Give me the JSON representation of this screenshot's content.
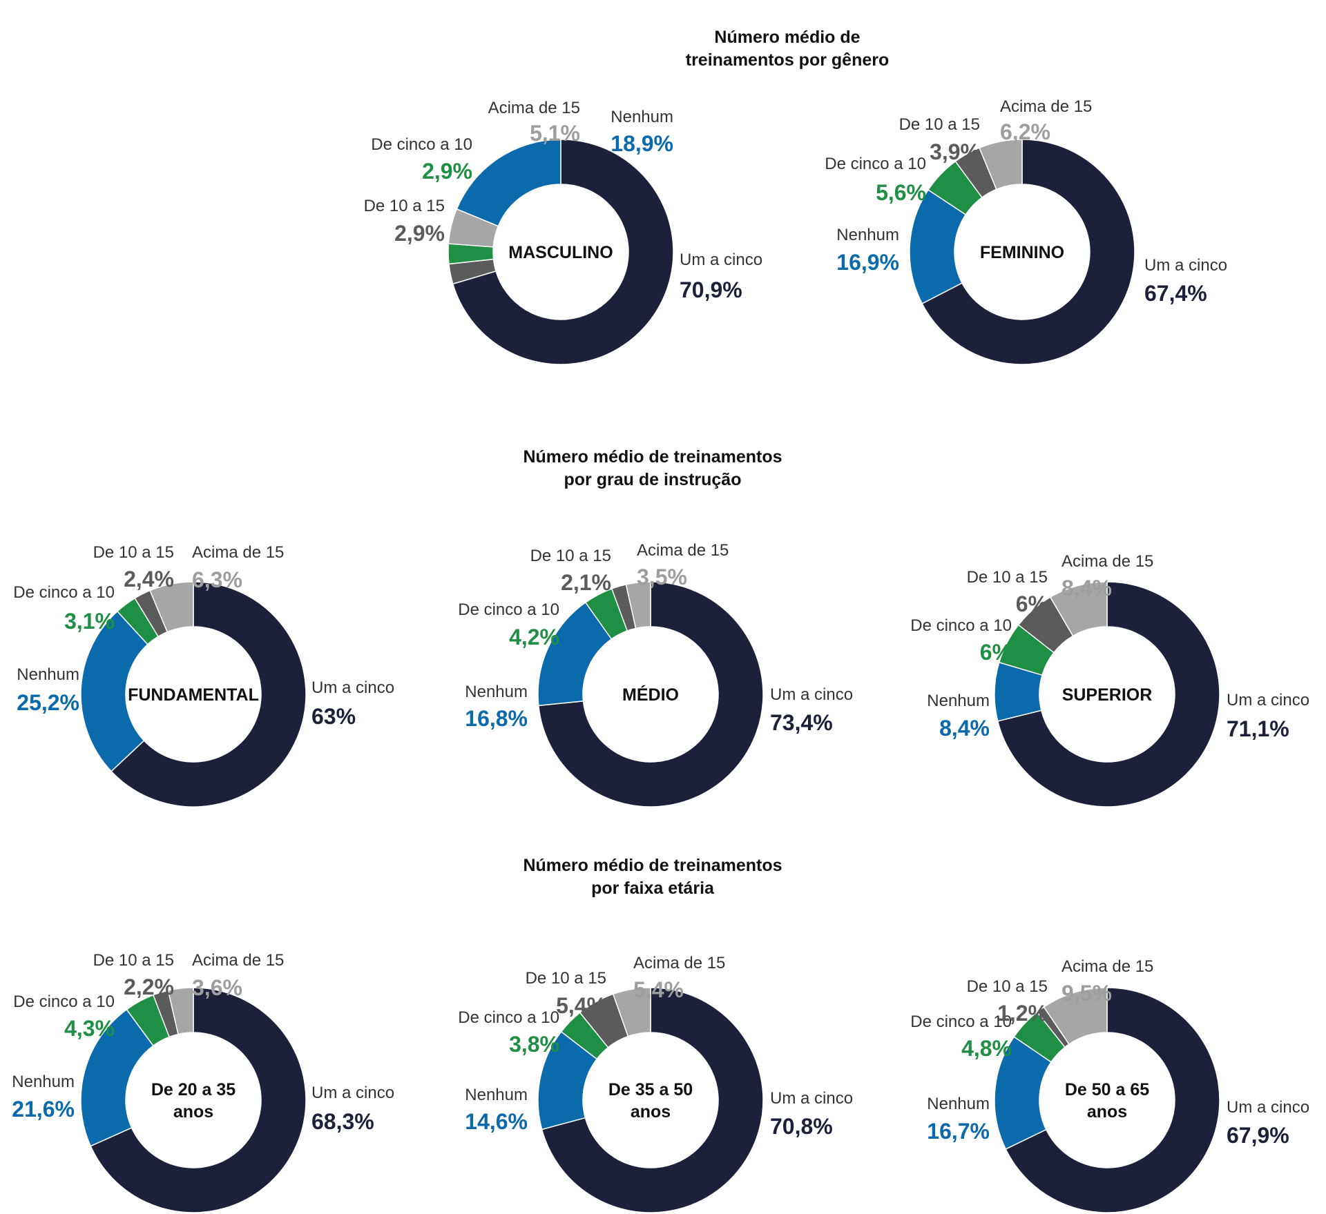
{
  "colors": {
    "um_a_cinco": "#1c2039",
    "nenhum": "#0a6aab",
    "de_cinco_a_10": "#1f8f45",
    "de_10_a_15": "#5b5b5b",
    "acima_de_15": "#a6a6a6",
    "pct_acima_de_15": "#9e9e9e",
    "title": "#111111"
  },
  "sections": [
    {
      "title_line1": "Número médio de",
      "title_line2": "treinamentos por gênero"
    },
    {
      "title_line1": "Número médio de treinamentos",
      "title_line2": "por grau de instrução"
    },
    {
      "title_line1": "Número médio de treinamentos",
      "title_line2": "por faixa etária"
    }
  ],
  "chart_data": [
    {
      "type": "pie",
      "section": "Número médio de treinamentos por gênero",
      "center_label": [
        "MASCULINO"
      ],
      "slices": [
        {
          "key": "um_a_cinco",
          "label": "Um a cinco",
          "value": 70.9,
          "pct_text": "70,9%"
        },
        {
          "key": "de_10_a_15",
          "label": "De 10 a 15",
          "value": 2.9,
          "pct_text": "2,9%"
        },
        {
          "key": "de_cinco_a_10",
          "label": "De cinco a 10",
          "value": 2.9,
          "pct_text": "2,9%"
        },
        {
          "key": "acima_de_15",
          "label": "Acima de 15",
          "value": 5.1,
          "pct_text": "5,1%"
        },
        {
          "key": "nenhum",
          "label": "Nenhum",
          "value": 18.9,
          "pct_text": "18,9%"
        }
      ]
    },
    {
      "type": "pie",
      "section": "Número médio de treinamentos por gênero",
      "center_label": [
        "FEMININO"
      ],
      "slices": [
        {
          "key": "um_a_cinco",
          "label": "Um a cinco",
          "value": 67.4,
          "pct_text": "67,4%"
        },
        {
          "key": "nenhum",
          "label": "Nenhum",
          "value": 16.9,
          "pct_text": "16,9%"
        },
        {
          "key": "de_cinco_a_10",
          "label": "De cinco a 10",
          "value": 5.6,
          "pct_text": "5,6%"
        },
        {
          "key": "de_10_a_15",
          "label": "De 10 a 15",
          "value": 3.9,
          "pct_text": "3,9%"
        },
        {
          "key": "acima_de_15",
          "label": "Acima de 15",
          "value": 6.2,
          "pct_text": "6,2%"
        }
      ]
    },
    {
      "type": "pie",
      "section": "Número médio de treinamentos por grau de instrução",
      "center_label": [
        "FUNDAMENTAL"
      ],
      "slices": [
        {
          "key": "um_a_cinco",
          "label": "Um a cinco",
          "value": 63,
          "pct_text": "63%"
        },
        {
          "key": "nenhum",
          "label": "Nenhum",
          "value": 25.2,
          "pct_text": "25,2%"
        },
        {
          "key": "de_cinco_a_10",
          "label": "De cinco a 10",
          "value": 3.1,
          "pct_text": "3,1%"
        },
        {
          "key": "de_10_a_15",
          "label": "De 10 a 15",
          "value": 2.4,
          "pct_text": "2,4%"
        },
        {
          "key": "acima_de_15",
          "label": "Acima de 15",
          "value": 6.3,
          "pct_text": "6,3%"
        }
      ]
    },
    {
      "type": "pie",
      "section": "Número médio de treinamentos por grau de instrução",
      "center_label": [
        "MÉDIO"
      ],
      "slices": [
        {
          "key": "um_a_cinco",
          "label": "Um a cinco",
          "value": 73.4,
          "pct_text": "73,4%"
        },
        {
          "key": "nenhum",
          "label": "Nenhum",
          "value": 16.8,
          "pct_text": "16,8%"
        },
        {
          "key": "de_cinco_a_10",
          "label": "De cinco a 10",
          "value": 4.2,
          "pct_text": "4,2%"
        },
        {
          "key": "de_10_a_15",
          "label": "De 10 a 15",
          "value": 2.1,
          "pct_text": "2,1%"
        },
        {
          "key": "acima_de_15",
          "label": "Acima de 15",
          "value": 3.5,
          "pct_text": "3,5%"
        }
      ]
    },
    {
      "type": "pie",
      "section": "Número médio de treinamentos por grau de instrução",
      "center_label": [
        "SUPERIOR"
      ],
      "slices": [
        {
          "key": "um_a_cinco",
          "label": "Um a cinco",
          "value": 71.1,
          "pct_text": "71,1%"
        },
        {
          "key": "nenhum",
          "label": "Nenhum",
          "value": 8.4,
          "pct_text": "8,4%"
        },
        {
          "key": "de_cinco_a_10",
          "label": "De cinco a 10",
          "value": 6,
          "pct_text": "6%"
        },
        {
          "key": "de_10_a_15",
          "label": "De 10 a 15",
          "value": 6,
          "pct_text": "6%"
        },
        {
          "key": "acima_de_15",
          "label": "Acima de 15",
          "value": 8.4,
          "pct_text": "8,4%"
        }
      ]
    },
    {
      "type": "pie",
      "section": "Número médio de treinamentos por faixa etária",
      "center_label": [
        "De 20 a 35",
        "anos"
      ],
      "slices": [
        {
          "key": "um_a_cinco",
          "label": "Um a cinco",
          "value": 68.3,
          "pct_text": "68,3%"
        },
        {
          "key": "nenhum",
          "label": "Nenhum",
          "value": 21.6,
          "pct_text": "21,6%"
        },
        {
          "key": "de_cinco_a_10",
          "label": "De cinco a 10",
          "value": 4.3,
          "pct_text": "4,3%"
        },
        {
          "key": "de_10_a_15",
          "label": "De 10 a 15",
          "value": 2.2,
          "pct_text": "2,2%"
        },
        {
          "key": "acima_de_15",
          "label": "Acima de 15",
          "value": 3.6,
          "pct_text": "3,6%"
        }
      ]
    },
    {
      "type": "pie",
      "section": "Número médio de treinamentos por faixa etária",
      "center_label": [
        "De 35 a 50",
        "anos"
      ],
      "slices": [
        {
          "key": "um_a_cinco",
          "label": "Um a cinco",
          "value": 70.8,
          "pct_text": "70,8%"
        },
        {
          "key": "nenhum",
          "label": "Nenhum",
          "value": 14.6,
          "pct_text": "14,6%"
        },
        {
          "key": "de_cinco_a_10",
          "label": "De cinco a 10",
          "value": 3.8,
          "pct_text": "3,8%"
        },
        {
          "key": "de_10_a_15",
          "label": "De 10 a 15",
          "value": 5.4,
          "pct_text": "5,4%"
        },
        {
          "key": "acima_de_15",
          "label": "Acima de 15",
          "value": 5.4,
          "pct_text": "5,4%"
        }
      ]
    },
    {
      "type": "pie",
      "section": "Número médio de treinamentos por faixa etária",
      "center_label": [
        "De 50 a 65",
        "anos"
      ],
      "slices": [
        {
          "key": "um_a_cinco",
          "label": "Um a cinco",
          "value": 67.9,
          "pct_text": "67,9%"
        },
        {
          "key": "nenhum",
          "label": "Nenhum",
          "value": 16.7,
          "pct_text": "16,7%"
        },
        {
          "key": "de_cinco_a_10",
          "label": "De cinco a 10",
          "value": 4.8,
          "pct_text": "4,8%"
        },
        {
          "key": "de_10_a_15",
          "label": "De 10 a 15",
          "value": 1.2,
          "pct_text": "1,2%"
        },
        {
          "key": "acima_de_15",
          "label": "Acima de 15",
          "value": 9.5,
          "pct_text": "9,5%"
        }
      ]
    }
  ]
}
